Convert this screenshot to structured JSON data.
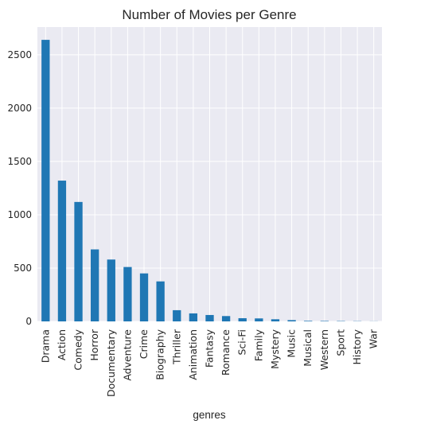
{
  "chart_data": {
    "type": "bar",
    "title": "Number of Movies per Genre",
    "xlabel": "genres",
    "ylabel": "",
    "categories": [
      "Drama",
      "Action",
      "Comedy",
      "Horror",
      "Documentary",
      "Adventure",
      "Crime",
      "Biography",
      "Thriller",
      "Animation",
      "Fantasy",
      "Romance",
      "Sci-Fi",
      "Family",
      "Mystery",
      "Music",
      "Musical",
      "Western",
      "Sport",
      "History",
      "War"
    ],
    "values": [
      2640,
      1320,
      1120,
      675,
      580,
      510,
      450,
      375,
      105,
      75,
      60,
      50,
      30,
      28,
      20,
      12,
      5,
      4,
      3,
      2,
      1
    ],
    "yticks": [
      "0",
      "500",
      "1000",
      "1500",
      "2000",
      "2500"
    ],
    "ylim": [
      0,
      2760
    ],
    "grid": true,
    "colors": {
      "bar": "#1f77b4",
      "background": "#eaeaf2",
      "grid": "#ffffff"
    }
  }
}
